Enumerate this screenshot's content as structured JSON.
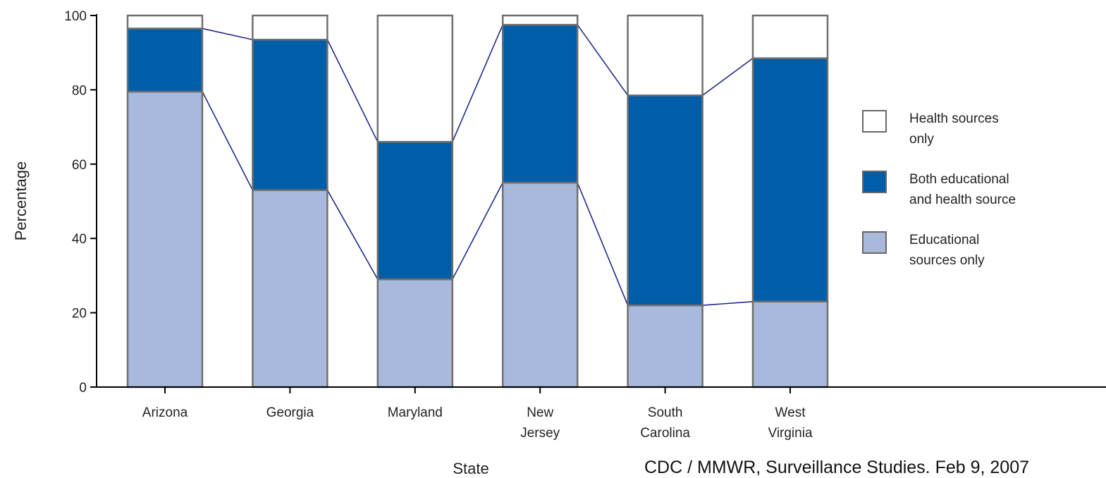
{
  "chart_data": {
    "type": "bar",
    "stacked": true,
    "xlabel": "State",
    "ylabel": "Percentage",
    "ylim": [
      0,
      100
    ],
    "yticks": [
      "0",
      "20",
      "40",
      "60",
      "80",
      "100"
    ],
    "categories": [
      [
        "Arizona"
      ],
      [
        "Georgia"
      ],
      [
        "Maryland"
      ],
      [
        "New",
        "Jersey"
      ],
      [
        "South",
        "Carolina"
      ],
      [
        "West",
        "Virginia"
      ]
    ],
    "series": [
      {
        "name": "Educational sources only",
        "legend_lines": [
          "Educational",
          "sources only"
        ],
        "color": "#a9b9dc",
        "values": [
          79.5,
          53,
          29,
          55,
          22,
          23
        ]
      },
      {
        "name": "Both educational and health source",
        "legend_lines": [
          "Both educational",
          "and health source"
        ],
        "color": "#005da8",
        "values": [
          17,
          40.5,
          37,
          42.5,
          56.5,
          65.5
        ]
      },
      {
        "name": "Health sources only",
        "legend_lines": [
          "Health sources",
          "only"
        ],
        "color": "#ffffff",
        "values": [
          3.5,
          6.5,
          34,
          2.5,
          21.5,
          11.5
        ]
      }
    ],
    "legend_position": "right",
    "connector_color": "#1f2a8a",
    "grid": false
  },
  "source_note": "CDC / MMWR, Surveillance Studies. Feb 9, 2007"
}
